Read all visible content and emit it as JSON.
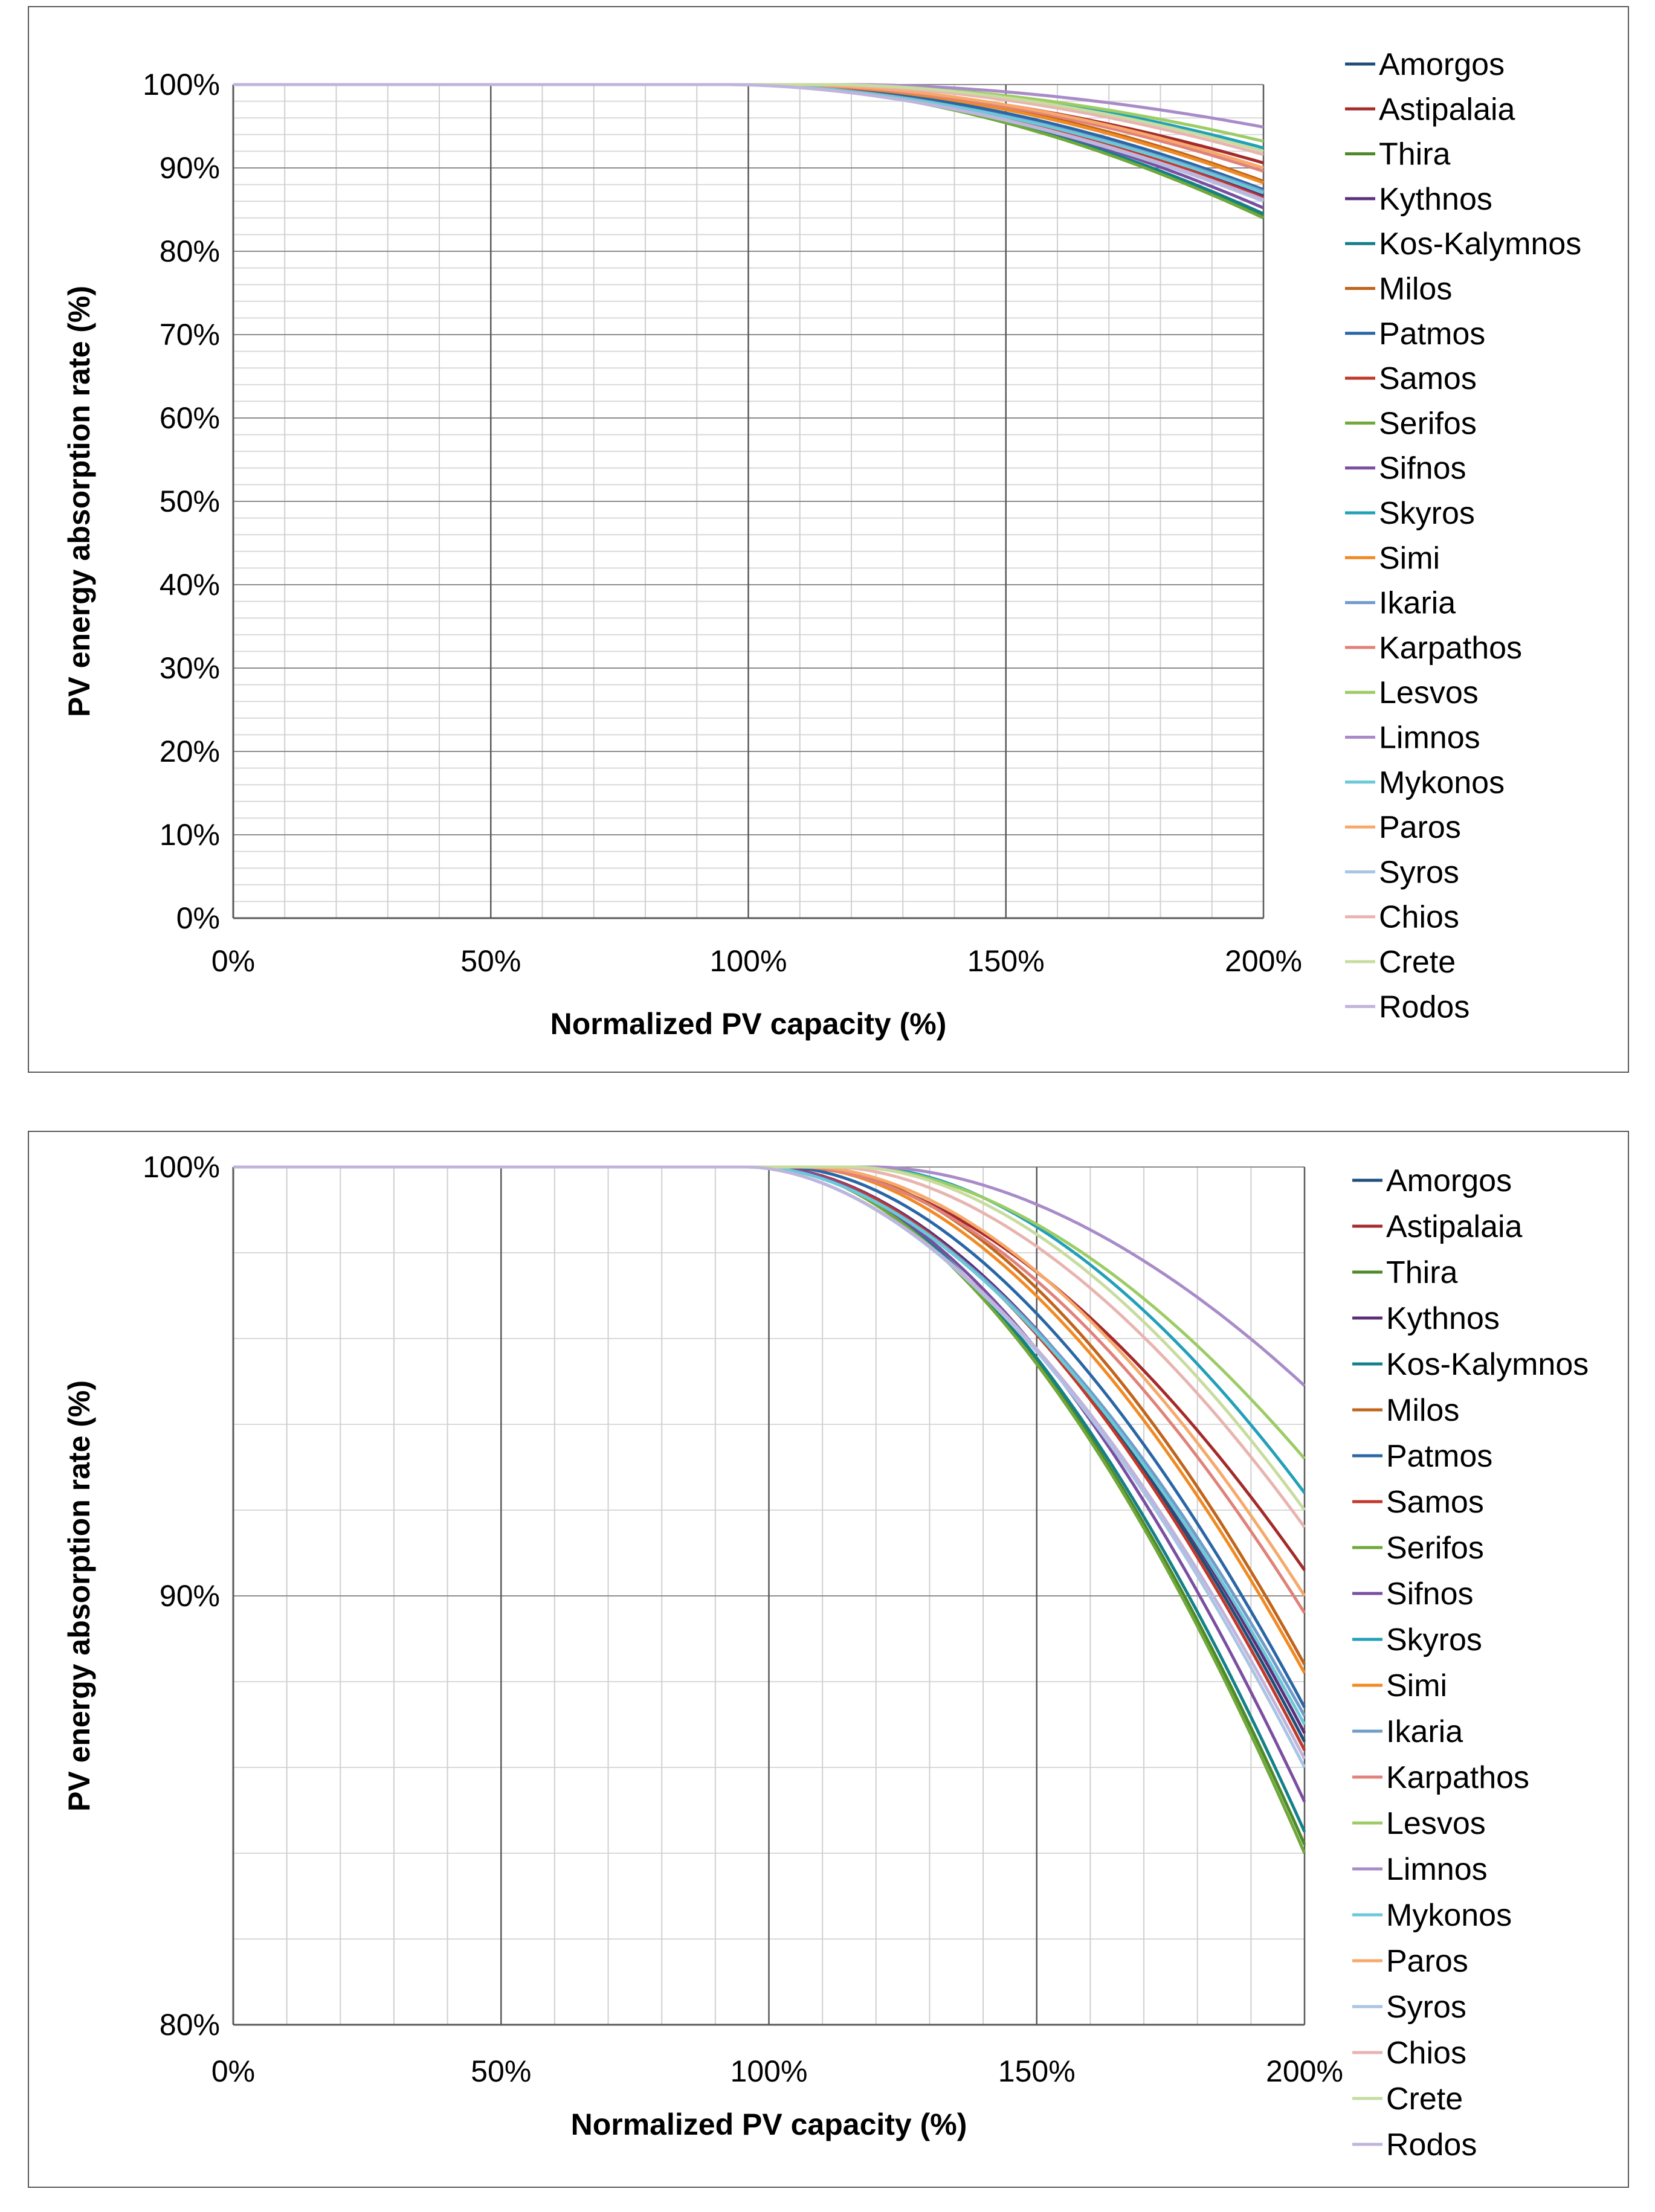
{
  "chart_data": [
    {
      "type": "line",
      "xlabel": "Normalized PV capacity (%)",
      "ylabel": "PV energy absorption rate (%)",
      "xlim": [
        0,
        200
      ],
      "ylim": [
        0,
        100
      ],
      "x_ticks": [
        0,
        50,
        100,
        150,
        200
      ],
      "x_tick_labels": [
        "0%",
        "50%",
        "100%",
        "150%",
        "200%"
      ],
      "y_ticks": [
        0,
        10,
        20,
        30,
        40,
        50,
        60,
        70,
        80,
        90,
        100
      ],
      "y_tick_labels": [
        "0%",
        "10%",
        "20%",
        "30%",
        "40%",
        "50%",
        "60%",
        "70%",
        "80%",
        "90%",
        "100%"
      ],
      "major_grid_x": [
        50,
        100,
        150,
        200
      ],
      "minor_grid_x_step": 10,
      "major_grid_y_step": 10,
      "minor_grid_y_step": 2,
      "grid": true,
      "legend_position": "right"
    },
    {
      "type": "line",
      "xlabel": "Normalized PV capacity (%)",
      "ylabel": "PV energy absorption rate (%)",
      "xlim": [
        0,
        200
      ],
      "ylim": [
        80,
        100
      ],
      "x_ticks": [
        0,
        50,
        100,
        150,
        200
      ],
      "x_tick_labels": [
        "0%",
        "50%",
        "100%",
        "150%",
        "200%"
      ],
      "y_ticks": [
        80,
        90,
        100
      ],
      "y_tick_labels": [
        "80%",
        "90%",
        "100%"
      ],
      "major_grid_x": [
        50,
        100,
        150,
        200
      ],
      "minor_grid_x_step": 10,
      "major_grid_y_step": 10,
      "minor_grid_y_step": 2,
      "grid": true,
      "legend_position": "right"
    }
  ],
  "series_note": "Each series: [name, color, x where absorption starts to drop below 100%, absorption % at 200%]",
  "series": [
    {
      "name": "Amorgos",
      "color": "#1f4e79",
      "x0": 100,
      "y200": 86.6
    },
    {
      "name": "Astipalaia",
      "color": "#a52a2a",
      "x0": 105,
      "y200": 90.6
    },
    {
      "name": "Thira",
      "color": "#4e8a2a",
      "x0": 100,
      "y200": 84.2
    },
    {
      "name": "Kythnos",
      "color": "#5b2f7a",
      "x0": 100,
      "y200": 86.8
    },
    {
      "name": "Kos-Kalymnos",
      "color": "#13808a",
      "x0": 100,
      "y200": 84.5
    },
    {
      "name": "Milos",
      "color": "#c0651b",
      "x0": 108,
      "y200": 88.4
    },
    {
      "name": "Patmos",
      "color": "#2a66a6",
      "x0": 103,
      "y200": 87.4
    },
    {
      "name": "Samos",
      "color": "#c0392b",
      "x0": 100,
      "y200": 86.4
    },
    {
      "name": "Serifos",
      "color": "#70a83a",
      "x0": 100,
      "y200": 84.0
    },
    {
      "name": "Sifnos",
      "color": "#7b4fa0",
      "x0": 100,
      "y200": 85.2
    },
    {
      "name": "Skyros",
      "color": "#22a0b8",
      "x0": 118,
      "y200": 92.4
    },
    {
      "name": "Simi",
      "color": "#f08a24",
      "x0": 106,
      "y200": 88.2
    },
    {
      "name": "Ikaria",
      "color": "#6f9cc9",
      "x0": 98,
      "y200": 87.2
    },
    {
      "name": "Karpathos",
      "color": "#e0827a",
      "x0": 106,
      "y200": 89.6
    },
    {
      "name": "Lesvos",
      "color": "#9ccc65",
      "x0": 116,
      "y200": 93.2
    },
    {
      "name": "Limnos",
      "color": "#a88bc8",
      "x0": 120,
      "y200": 94.9
    },
    {
      "name": "Mykonos",
      "color": "#6cc8d8",
      "x0": 98,
      "y200": 87.0
    },
    {
      "name": "Paros",
      "color": "#f6a96b",
      "x0": 108,
      "y200": 90.0
    },
    {
      "name": "Syros",
      "color": "#a9c4e4",
      "x0": 96,
      "y200": 86.0
    },
    {
      "name": "Chios",
      "color": "#e8b4b0",
      "x0": 112,
      "y200": 91.6
    },
    {
      "name": "Crete",
      "color": "#c8dca0",
      "x0": 116,
      "y200": 92.0
    },
    {
      "name": "Rodos",
      "color": "#c0b4dc",
      "x0": 96,
      "y200": 86.2
    }
  ]
}
